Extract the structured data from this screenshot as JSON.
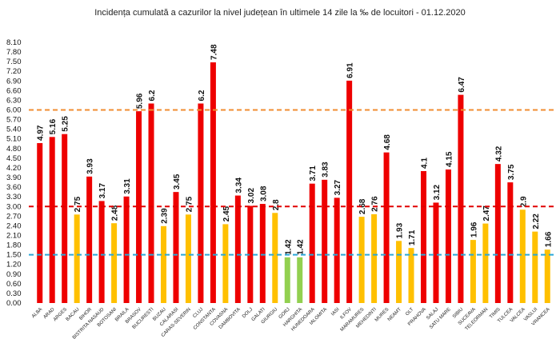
{
  "chart_data": {
    "type": "bar",
    "title": "Incidența cumulată a cazurilor la nivel județean în ultimele 14 zile la ‰ de locuitori - 01.12.2020",
    "xlabel": "",
    "ylabel": "",
    "ylim": [
      0,
      8.1
    ],
    "ytick_step": 0.3,
    "grid": false,
    "categories": [
      "ALBA",
      "ARAD",
      "ARGES",
      "BACAU",
      "BIHOR",
      "BISTRITA NASAUD",
      "BOTOSANI",
      "BRAILA",
      "BRASOV",
      "BUCURESTI",
      "BUZAU",
      "CALARASI",
      "CARAS-SEVERIN",
      "CLUJ",
      "CONSTANTA",
      "COVASNA",
      "DAMBOVITA",
      "DOLJ",
      "GALATI",
      "GIURGIU",
      "GORJ",
      "HARGHITA",
      "HUNEDOARA",
      "IALOMITA",
      "IASI",
      "ILFOV",
      "MARAMURES",
      "MEHEDINTI",
      "MURES",
      "NEAMT",
      "OLT",
      "PRAHOVA",
      "SALAJ",
      "SATU MARE",
      "SIBIU",
      "SUCEAVA",
      "TELEORMAN",
      "TIMIS",
      "TULCEA",
      "VALCEA",
      "VASLUI",
      "VRANCEA"
    ],
    "values": [
      4.97,
      5.16,
      5.25,
      2.75,
      3.93,
      3.17,
      2.48,
      3.31,
      5.96,
      6.2,
      2.39,
      3.45,
      2.75,
      6.2,
      7.48,
      2.45,
      3.34,
      3.02,
      3.08,
      2.8,
      1.42,
      1.42,
      3.71,
      3.83,
      3.27,
      6.91,
      2.68,
      2.76,
      4.68,
      1.93,
      1.71,
      4.1,
      3.12,
      4.15,
      6.47,
      1.96,
      2.47,
      4.32,
      3.75,
      2.9,
      2.22,
      1.66
    ],
    "color_thresholds": {
      "red_above": 3,
      "yellow_above": 1.5
    },
    "colors": {
      "red": "#ee0000",
      "yellow": "#ffc000",
      "green": "#92d050"
    },
    "reference_lines": [
      {
        "value": 6.0,
        "color": "#f08c30"
      },
      {
        "value": 3.0,
        "color": "#e00000"
      },
      {
        "value": 1.5,
        "color": "#2aa8d8"
      }
    ]
  }
}
